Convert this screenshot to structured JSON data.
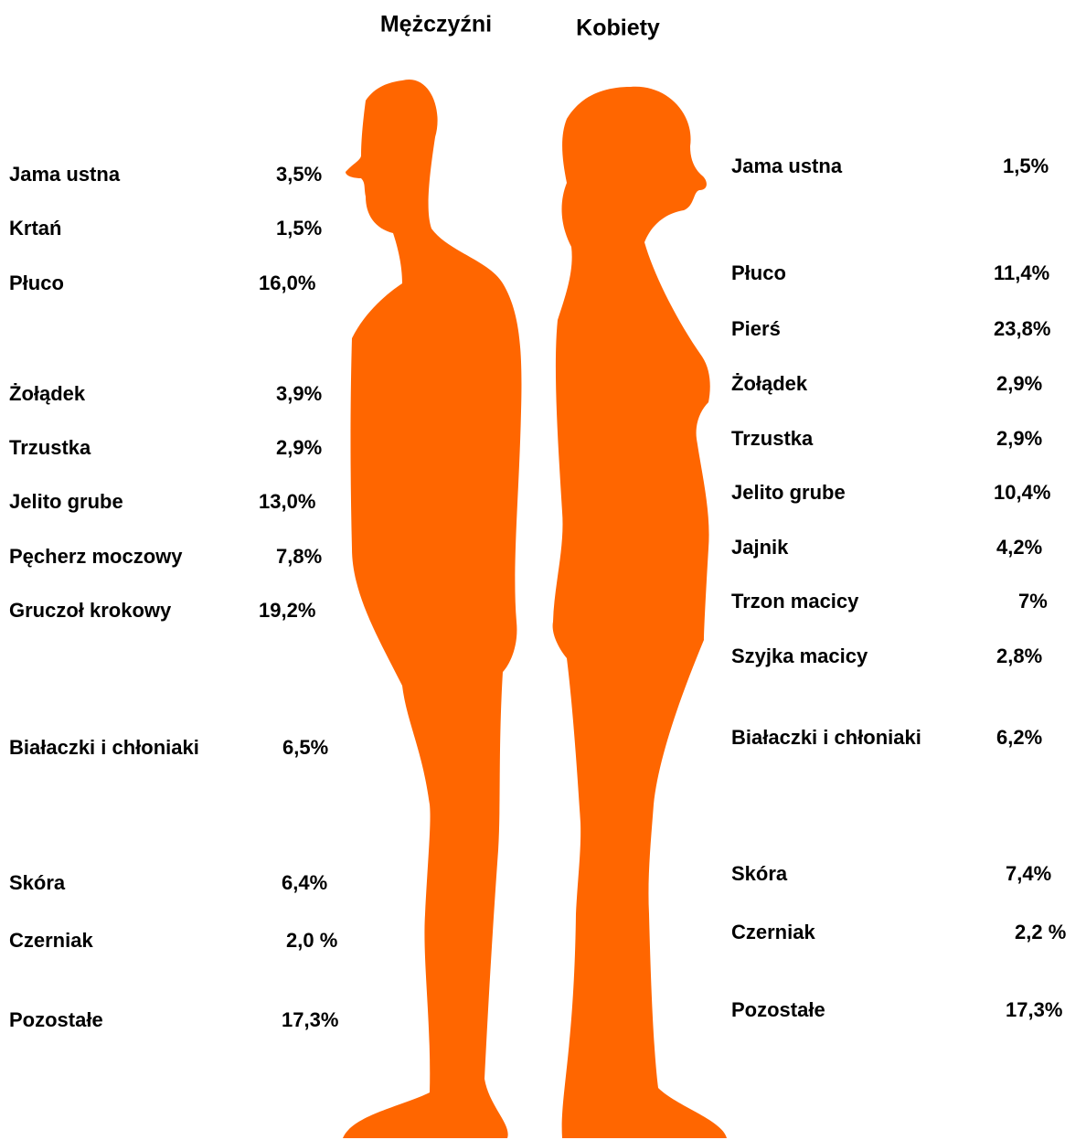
{
  "headings": {
    "men": "Mężczyźni",
    "women": "Kobiety"
  },
  "men": [
    {
      "label": "Jama ustna",
      "value": "3,5%"
    },
    {
      "label": "Krtań",
      "value": "1,5%"
    },
    {
      "label": "Płuco",
      "value": "16,0%"
    },
    {
      "label": "Żołądek",
      "value": "3,9%"
    },
    {
      "label": "Trzustka",
      "value": "2,9%"
    },
    {
      "label": "Jelito grube",
      "value": "13,0%"
    },
    {
      "label": "Pęcherz moczowy",
      "value": "7,8%"
    },
    {
      "label": "Gruczoł krokowy",
      "value": "19,2%"
    },
    {
      "label": "Białaczki i chłoniaki",
      "value": "6,5%"
    },
    {
      "label": "Skóra",
      "value": "6,4%"
    },
    {
      "label": "Czerniak",
      "value": "2,0 %"
    },
    {
      "label": "Pozostałe",
      "value": "17,3%"
    }
  ],
  "women": [
    {
      "label": "Jama ustna",
      "value": "1,5%"
    },
    {
      "label": "Płuco",
      "value": "11,4%"
    },
    {
      "label": "Pierś",
      "value": "23,8%"
    },
    {
      "label": "Żołądek",
      "value": "2,9%"
    },
    {
      "label": "Trzustka",
      "value": "2,9%"
    },
    {
      "label": "Jelito grube",
      "value": "10,4%"
    },
    {
      "label": "Jajnik",
      "value": "4,2%"
    },
    {
      "label": "Trzon macicy",
      "value": "7%"
    },
    {
      "label": "Szyjka macicy",
      "value": "2,8%"
    },
    {
      "label": "Białaczki i chłoniaki",
      "value": "6,2%"
    },
    {
      "label": "Skóra",
      "value": "7,4%"
    },
    {
      "label": "Czerniak",
      "value": "2,2 %"
    },
    {
      "label": "Pozostałe",
      "value": "17,3%"
    }
  ]
}
